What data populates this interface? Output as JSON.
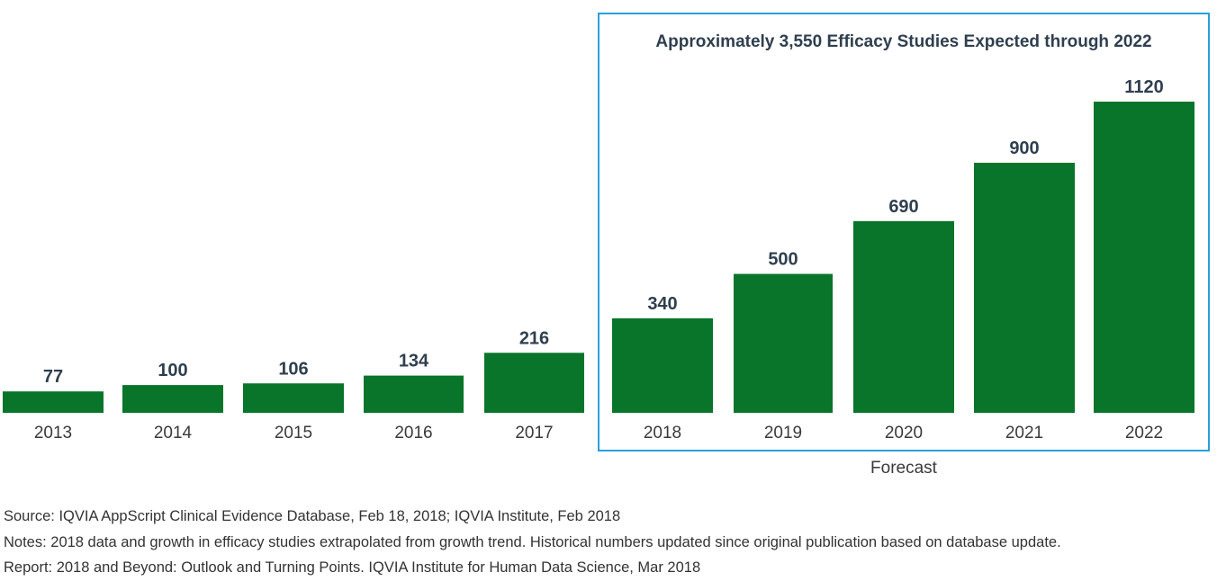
{
  "chart_data": {
    "type": "bar",
    "categories": [
      "2013",
      "2014",
      "2015",
      "2016",
      "2017",
      "2018",
      "2019",
      "2020",
      "2021",
      "2022"
    ],
    "values": [
      77,
      100,
      106,
      134,
      216,
      340,
      500,
      690,
      900,
      1120
    ],
    "forecast_title": "Approximately 3,550 Efficacy Studies Expected through 2022",
    "forecast_label": "Forecast",
    "forecast_categories": [
      "2018",
      "2019",
      "2020",
      "2021",
      "2022"
    ],
    "bar_color": "#08752a",
    "forecast_border_color": "#29a0db",
    "ylim": [
      0,
      1120
    ]
  },
  "footer": {
    "source": "Source: IQVIA AppScript Clinical Evidence Database, Feb 18, 2018; IQVIA Institute, Feb 2018",
    "notes": "Notes: 2018 data and growth in efficacy studies extrapolated from growth trend. Historical numbers updated since original publication based on database update.",
    "report": "Report: 2018 and Beyond: Outlook and Turning Points. IQVIA Institute for Human Data Science, Mar 2018"
  }
}
